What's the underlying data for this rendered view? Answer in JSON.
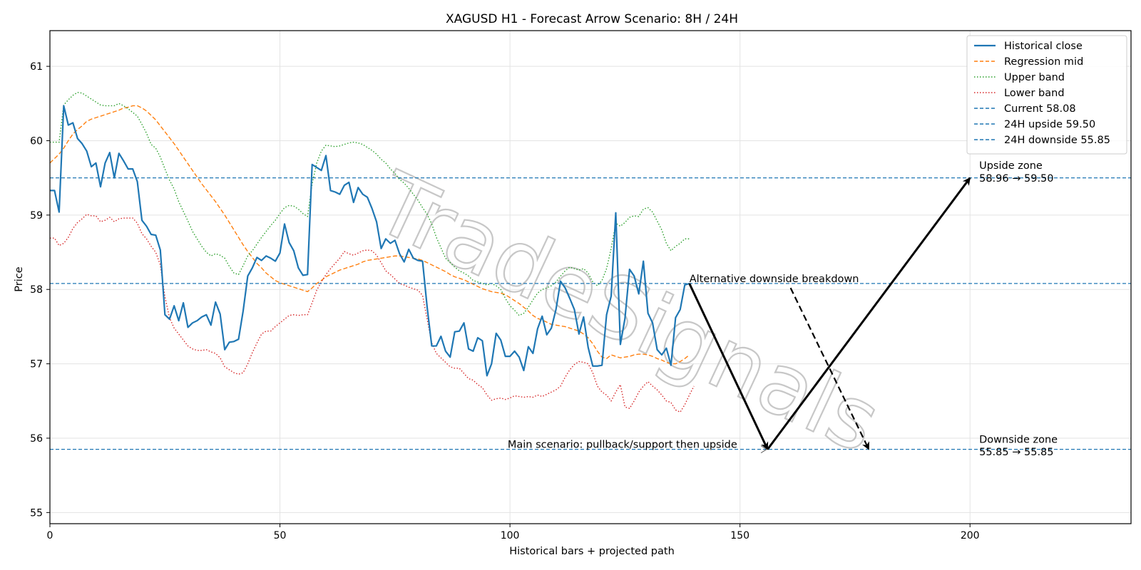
{
  "chart_data": {
    "type": "line",
    "title": "XAGUSD H1 - Forecast Arrow Scenario: 8H / 24H",
    "xlabel": "Historical bars + projected path",
    "ylabel": "Price",
    "xlim": [
      0,
      235
    ],
    "ylim": [
      54.85,
      61.48
    ],
    "x_ticks": [
      0,
      50,
      100,
      150,
      200
    ],
    "y_ticks": [
      55,
      56,
      57,
      58,
      59,
      60,
      61
    ],
    "grid": true,
    "legend_position": "top-right",
    "series": [
      {
        "name": "Historical close",
        "style": "solid",
        "color": "#1f77b4",
        "values": [
          59.33,
          59.33,
          59.04,
          60.47,
          60.21,
          60.24,
          60.03,
          59.96,
          59.86,
          59.65,
          59.7,
          59.38,
          59.7,
          59.84,
          59.5,
          59.83,
          59.73,
          59.62,
          59.62,
          59.45,
          58.93,
          58.85,
          58.74,
          58.73,
          58.53,
          57.66,
          57.6,
          57.78,
          57.58,
          57.82,
          57.49,
          57.55,
          57.58,
          57.63,
          57.66,
          57.52,
          57.83,
          57.67,
          57.19,
          57.29,
          57.3,
          57.33,
          57.71,
          58.18,
          58.29,
          58.43,
          58.39,
          58.45,
          58.42,
          58.38,
          58.49,
          58.88,
          58.63,
          58.52,
          58.29,
          58.19,
          58.2,
          59.68,
          59.64,
          59.6,
          59.8,
          59.33,
          59.31,
          59.28,
          59.4,
          59.44,
          59.17,
          59.37,
          59.28,
          59.24,
          59.09,
          58.91,
          58.55,
          58.68,
          58.62,
          58.66,
          58.48,
          58.37,
          58.54,
          58.42,
          58.39,
          58.38,
          57.76,
          57.24,
          57.24,
          57.37,
          57.17,
          57.09,
          57.43,
          57.44,
          57.55,
          57.2,
          57.17,
          57.35,
          57.31,
          56.84,
          57.0,
          57.41,
          57.32,
          57.1,
          57.1,
          57.17,
          57.09,
          56.91,
          57.23,
          57.14,
          57.47,
          57.64,
          57.39,
          57.48,
          57.73,
          58.11,
          58.02,
          57.88,
          57.73,
          57.4,
          57.63,
          57.22,
          56.97,
          56.97,
          56.98,
          57.66,
          57.91,
          59.03,
          57.26,
          57.61,
          58.27,
          58.18,
          57.94,
          58.38,
          57.68,
          57.55,
          57.19,
          57.12,
          57.21,
          56.98,
          57.62,
          57.73,
          58.06,
          58.08
        ]
      },
      {
        "name": "Regression mid",
        "style": "dashed",
        "color": "#ff7f0e",
        "values": [
          59.7,
          59.76,
          59.82,
          59.9,
          60.0,
          60.09,
          60.15,
          60.2,
          60.26,
          60.29,
          60.31,
          60.33,
          60.35,
          60.37,
          60.39,
          60.41,
          60.44,
          60.45,
          60.47,
          60.47,
          60.44,
          60.4,
          60.34,
          60.28,
          60.2,
          60.12,
          60.04,
          59.96,
          59.87,
          59.78,
          59.69,
          59.6,
          59.51,
          59.42,
          59.34,
          59.26,
          59.18,
          59.09,
          59.0,
          58.9,
          58.8,
          58.7,
          58.6,
          58.51,
          58.43,
          58.35,
          58.29,
          58.22,
          58.17,
          58.12,
          58.09,
          58.07,
          58.05,
          58.03,
          58.01,
          57.99,
          57.97,
          58.02,
          58.08,
          58.12,
          58.17,
          58.2,
          58.23,
          58.26,
          58.28,
          58.3,
          58.32,
          58.34,
          58.37,
          58.39,
          58.4,
          58.41,
          58.42,
          58.43,
          58.44,
          58.45,
          58.45,
          58.44,
          58.43,
          58.42,
          58.41,
          58.39,
          58.36,
          58.33,
          58.3,
          58.27,
          58.24,
          58.2,
          58.17,
          58.15,
          58.13,
          58.1,
          58.07,
          58.04,
          58.01,
          57.99,
          57.97,
          57.96,
          57.95,
          57.93,
          57.89,
          57.85,
          57.81,
          57.76,
          57.71,
          57.65,
          57.61,
          57.59,
          57.56,
          57.53,
          57.52,
          57.51,
          57.5,
          57.48,
          57.46,
          57.44,
          57.4,
          57.35,
          57.27,
          57.17,
          57.09,
          57.07,
          57.12,
          57.1,
          57.08,
          57.09,
          57.1,
          57.12,
          57.13,
          57.13,
          57.12,
          57.1,
          57.07,
          57.05,
          57.02,
          57.0,
          57.0,
          57.03,
          57.07,
          57.12
        ]
      },
      {
        "name": "Upper band",
        "style": "dotted",
        "color": "#2ca02c",
        "values": [
          59.98,
          59.98,
          59.98,
          60.48,
          60.55,
          60.61,
          60.65,
          60.64,
          60.6,
          60.56,
          60.52,
          60.48,
          60.47,
          60.47,
          60.47,
          60.5,
          60.47,
          60.43,
          60.38,
          60.33,
          60.22,
          60.1,
          59.95,
          59.9,
          59.78,
          59.62,
          59.47,
          59.35,
          59.18,
          59.05,
          58.92,
          58.78,
          58.68,
          58.58,
          58.5,
          58.45,
          58.48,
          58.46,
          58.42,
          58.31,
          58.22,
          58.2,
          58.32,
          58.45,
          58.52,
          58.61,
          58.7,
          58.78,
          58.86,
          58.93,
          59.02,
          59.1,
          59.13,
          59.12,
          59.08,
          59.02,
          58.98,
          59.42,
          59.7,
          59.86,
          59.94,
          59.93,
          59.92,
          59.93,
          59.95,
          59.97,
          59.98,
          59.97,
          59.95,
          59.91,
          59.87,
          59.82,
          59.75,
          59.7,
          59.62,
          59.56,
          59.48,
          59.43,
          59.36,
          59.28,
          59.2,
          59.1,
          59.01,
          58.88,
          58.7,
          58.56,
          58.42,
          58.36,
          58.3,
          58.25,
          58.22,
          58.18,
          58.12,
          58.1,
          58.08,
          58.06,
          58.08,
          58.05,
          58.0,
          57.88,
          57.78,
          57.72,
          57.65,
          57.68,
          57.76,
          57.86,
          57.95,
          58.0,
          58.02,
          58.05,
          58.1,
          58.18,
          58.25,
          58.3,
          58.28,
          58.26,
          58.28,
          58.22,
          58.1,
          58.05,
          58.12,
          58.28,
          58.55,
          58.89,
          58.85,
          58.9,
          58.97,
          58.99,
          58.98,
          59.08,
          59.1,
          59.04,
          58.92,
          58.8,
          58.62,
          58.52,
          58.58,
          58.62,
          58.68,
          58.68
        ]
      },
      {
        "name": "Lower band",
        "style": "dotted",
        "color": "#d62728",
        "values": [
          58.69,
          58.69,
          58.59,
          58.62,
          58.7,
          58.82,
          58.9,
          58.95,
          59.01,
          58.99,
          58.99,
          58.91,
          58.93,
          58.97,
          58.91,
          58.95,
          58.96,
          58.96,
          58.96,
          58.89,
          58.75,
          58.68,
          58.58,
          58.5,
          58.33,
          57.9,
          57.62,
          57.48,
          57.4,
          57.32,
          57.24,
          57.2,
          57.18,
          57.18,
          57.19,
          57.16,
          57.14,
          57.08,
          56.96,
          56.92,
          56.88,
          56.86,
          56.88,
          57.0,
          57.15,
          57.28,
          57.4,
          57.44,
          57.44,
          57.5,
          57.55,
          57.6,
          57.65,
          57.66,
          57.65,
          57.66,
          57.66,
          57.82,
          57.99,
          58.1,
          58.2,
          58.28,
          58.35,
          58.42,
          58.51,
          58.48,
          58.46,
          58.49,
          58.52,
          58.53,
          58.52,
          58.46,
          58.36,
          58.25,
          58.2,
          58.14,
          58.08,
          58.06,
          58.03,
          58.01,
          57.99,
          57.92,
          57.6,
          57.28,
          57.14,
          57.08,
          57.02,
          56.96,
          56.94,
          56.94,
          56.87,
          56.8,
          56.78,
          56.72,
          56.68,
          56.58,
          56.51,
          56.53,
          56.54,
          56.52,
          56.54,
          56.57,
          56.56,
          56.55,
          56.56,
          56.55,
          56.58,
          56.56,
          56.59,
          56.62,
          56.65,
          56.7,
          56.82,
          56.92,
          56.99,
          57.03,
          57.02,
          57.0,
          56.88,
          56.7,
          56.62,
          56.58,
          56.5,
          56.62,
          56.72,
          56.42,
          56.4,
          56.5,
          56.62,
          56.7,
          56.76,
          56.7,
          56.65,
          56.58,
          56.5,
          56.48,
          56.38,
          56.35,
          56.45,
          56.58,
          56.7
        ]
      }
    ],
    "hlines": [
      {
        "name": "Current 58.08",
        "y": 58.08,
        "color": "#1f77b4"
      },
      {
        "name": "24H upside 59.50",
        "y": 59.5,
        "color": "#1f77b4"
      },
      {
        "name": "24H downside 55.85",
        "y": 55.85,
        "color": "#1f77b4"
      }
    ],
    "arrows": [
      {
        "from": [
          139,
          58.08
        ],
        "to": [
          156,
          55.85
        ],
        "style": "solid"
      },
      {
        "from": [
          156,
          55.85
        ],
        "to": [
          200,
          59.5
        ],
        "style": "solid"
      },
      {
        "from": [
          161,
          58.02
        ],
        "to": [
          178,
          55.85
        ],
        "style": "dashed"
      }
    ],
    "annotations": [
      {
        "text": "Alternative downside breakdown",
        "x": 139,
        "y": 58.08
      },
      {
        "text": "Main scenario: pullback/support then upside",
        "x": 99.5,
        "y": 55.85
      },
      {
        "text": "Upside zone",
        "x": 202,
        "y": 59.6
      },
      {
        "text": "58.96 → 59.50",
        "x": 202,
        "y": 59.43
      },
      {
        "text": "Downside zone",
        "x": 202,
        "y": 55.92
      },
      {
        "text": "55.85 → 55.85",
        "x": 202,
        "y": 55.75
      }
    ],
    "watermark": "TradeSignals"
  }
}
